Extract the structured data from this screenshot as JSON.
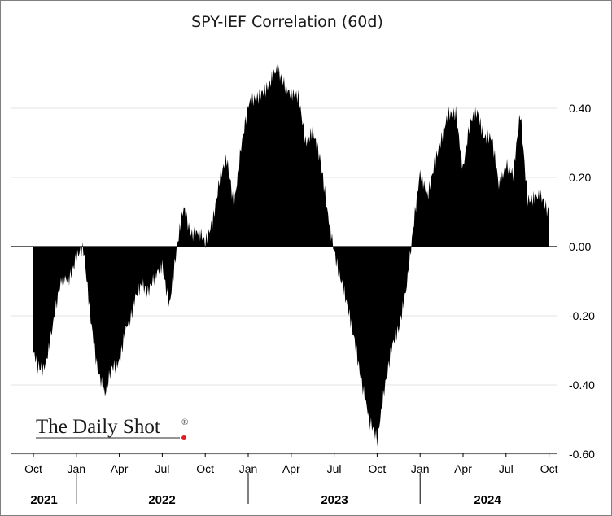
{
  "chart_data": {
    "type": "area",
    "title": "SPY-IEF Correlation (60d)",
    "xlabel": "",
    "ylabel": "",
    "ylim": [
      -0.6,
      0.5
    ],
    "y_ticks": [
      "0.40",
      "0.20",
      "0.00",
      "-0.20",
      "-0.40",
      "-0.60"
    ],
    "x_ticks": [
      "Oct",
      "Jan",
      "Apr",
      "Jul",
      "Oct",
      "Jan",
      "Apr",
      "Jul",
      "Oct",
      "Jan",
      "Apr",
      "Jul",
      "Oct"
    ],
    "years": [
      "2021",
      "2022",
      "2023",
      "2024"
    ],
    "grid": true,
    "fill_color": "#000000",
    "series": [
      {
        "name": "SPY-IEF Correlation (60d)",
        "x": [
          0,
          0.3,
          0.7,
          1,
          1.5,
          2,
          2.5,
          3,
          3.5,
          4,
          4.5,
          5,
          5.5,
          6,
          6.3,
          6.6,
          6.9,
          7.2,
          7.6,
          8,
          8.5,
          9,
          9.5,
          10,
          10.5,
          11,
          11.5,
          12,
          12.5,
          13,
          13.5,
          14,
          14.5,
          15,
          15.5,
          16,
          16.5,
          17,
          17.5,
          18,
          18.5,
          19,
          19.5,
          20,
          20.5,
          21,
          21.5,
          22,
          22.5,
          23,
          23.5,
          24,
          24.5,
          25,
          25.5,
          26,
          26.5,
          27,
          27.5,
          28,
          28.5,
          29,
          29.5,
          30,
          30.5,
          31,
          31.5,
          32,
          32.5,
          33,
          33.5,
          34,
          34.5,
          35,
          35.5,
          36
        ],
        "values": [
          -0.32,
          -0.34,
          -0.36,
          -0.3,
          -0.2,
          -0.1,
          -0.08,
          -0.03,
          -0.02,
          -0.2,
          -0.35,
          -0.44,
          -0.35,
          -0.32,
          -0.28,
          -0.22,
          -0.18,
          -0.15,
          -0.12,
          -0.13,
          -0.1,
          -0.05,
          -0.16,
          -0.02,
          0.11,
          0.05,
          0.04,
          0.0,
          0.08,
          0.2,
          0.24,
          0.12,
          0.3,
          0.4,
          0.42,
          0.46,
          0.47,
          0.5,
          0.48,
          0.45,
          0.42,
          0.3,
          0.35,
          0.25,
          0.1,
          0.0,
          -0.1,
          -0.2,
          -0.28,
          -0.4,
          -0.52,
          -0.56,
          -0.4,
          -0.3,
          -0.25,
          -0.12,
          0.05,
          0.2,
          0.15,
          0.25,
          0.3,
          0.38,
          0.4,
          0.22,
          0.35,
          0.4,
          0.32,
          0.3,
          0.18,
          0.25,
          0.2,
          0.38,
          0.15,
          0.14,
          0.13,
          0.1
        ]
      }
    ]
  },
  "branding": {
    "logo_text": "The Daily Shot",
    "logo_mark": "®",
    "logo_dot_color": "#e31b23"
  }
}
